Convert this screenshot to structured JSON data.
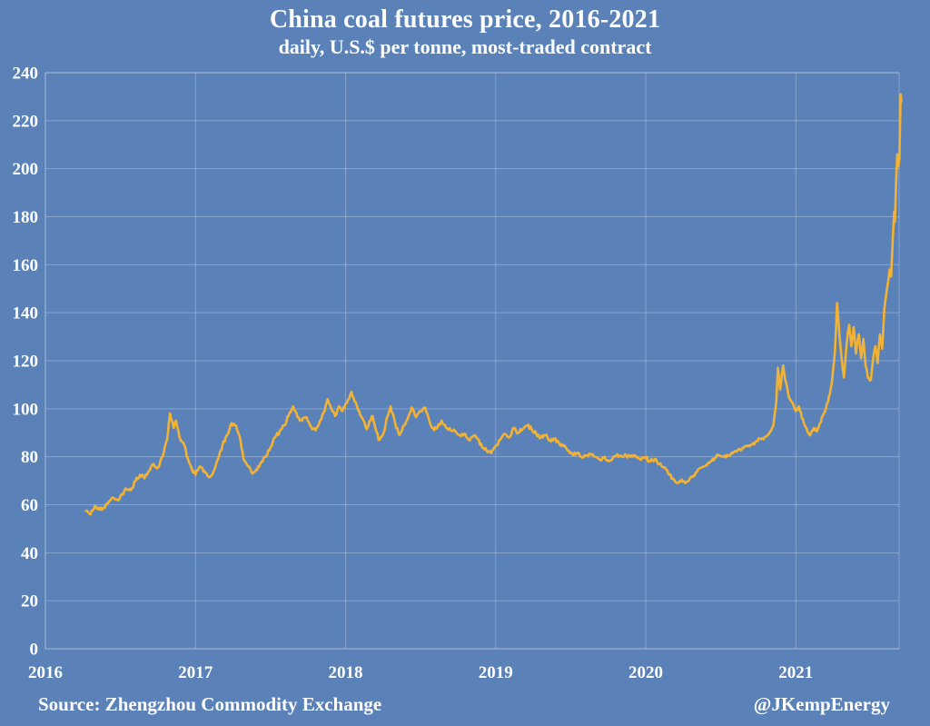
{
  "title": "China coal futures price, 2016-2021",
  "subtitle": "daily, U.S.$ per tonne, most-traded contract",
  "footer": {
    "source": "Source: Zhengzhou Commodity Exchange",
    "credit": "@JKempEnergy"
  },
  "colors": {
    "background": "#5a81b8",
    "line": "#f2b234",
    "grid": "rgba(255,255,255,0.28)",
    "text": "#ffffff"
  },
  "chart_data": {
    "type": "line",
    "title": "China coal futures price, 2016-2021",
    "subtitle": "daily, U.S.$ per tonne, most-traded contract",
    "xlabel": "",
    "ylabel": "U.S.$ per tonne",
    "xlim": [
      2016.0,
      2021.688
    ],
    "ylim": [
      0,
      240
    ],
    "x_ticks": [
      2016,
      2017,
      2018,
      2019,
      2020,
      2021
    ],
    "x_tick_labels": [
      "2016",
      "2017",
      "2018",
      "2019",
      "2020",
      "2021"
    ],
    "y_ticks": [
      0,
      20,
      40,
      60,
      80,
      100,
      120,
      140,
      160,
      180,
      200,
      220,
      240
    ],
    "grid": true,
    "legend": "none",
    "sampling": "anchor points read from daily line",
    "series": [
      {
        "name": "Most-traded contract price (U.S.$/tonne)",
        "points": [
          [
            2016.27,
            57.5
          ],
          [
            2016.3,
            56
          ],
          [
            2016.33,
            59.5
          ],
          [
            2016.36,
            58
          ],
          [
            2016.39,
            58.5
          ],
          [
            2016.42,
            61
          ],
          [
            2016.45,
            63
          ],
          [
            2016.48,
            62
          ],
          [
            2016.51,
            64.5
          ],
          [
            2016.54,
            66.5
          ],
          [
            2016.57,
            66
          ],
          [
            2016.6,
            70
          ],
          [
            2016.63,
            72.5
          ],
          [
            2016.66,
            71
          ],
          [
            2016.69,
            74
          ],
          [
            2016.72,
            77
          ],
          [
            2016.75,
            75.5
          ],
          [
            2016.78,
            80
          ],
          [
            2016.81,
            87
          ],
          [
            2016.83,
            98
          ],
          [
            2016.855,
            92
          ],
          [
            2016.87,
            95
          ],
          [
            2016.9,
            87
          ],
          [
            2016.925,
            85
          ],
          [
            2016.95,
            79
          ],
          [
            2016.975,
            75
          ],
          [
            2017.0,
            72.5
          ],
          [
            2017.03,
            76
          ],
          [
            2017.06,
            74
          ],
          [
            2017.09,
            71.5
          ],
          [
            2017.12,
            74
          ],
          [
            2017.15,
            79
          ],
          [
            2017.18,
            85
          ],
          [
            2017.21,
            89
          ],
          [
            2017.24,
            94
          ],
          [
            2017.27,
            93
          ],
          [
            2017.3,
            87
          ],
          [
            2017.32,
            79
          ],
          [
            2017.35,
            76
          ],
          [
            2017.38,
            73
          ],
          [
            2017.41,
            74.5
          ],
          [
            2017.44,
            78
          ],
          [
            2017.47,
            80
          ],
          [
            2017.5,
            84
          ],
          [
            2017.53,
            88
          ],
          [
            2017.56,
            90.5
          ],
          [
            2017.59,
            93
          ],
          [
            2017.62,
            97
          ],
          [
            2017.65,
            101
          ],
          [
            2017.68,
            96.5
          ],
          [
            2017.71,
            95
          ],
          [
            2017.74,
            96.5
          ],
          [
            2017.77,
            92.5
          ],
          [
            2017.8,
            91
          ],
          [
            2017.83,
            95
          ],
          [
            2017.86,
            99
          ],
          [
            2017.88,
            104
          ],
          [
            2017.905,
            100
          ],
          [
            2017.93,
            97
          ],
          [
            2017.955,
            101
          ],
          [
            2017.98,
            99
          ],
          [
            2018.0,
            102
          ],
          [
            2018.04,
            107
          ],
          [
            2018.06,
            103
          ],
          [
            2018.09,
            99
          ],
          [
            2018.12,
            95
          ],
          [
            2018.14,
            91.5
          ],
          [
            2018.16,
            95
          ],
          [
            2018.18,
            97
          ],
          [
            2018.22,
            87
          ],
          [
            2018.25,
            89.5
          ],
          [
            2018.28,
            97
          ],
          [
            2018.3,
            101
          ],
          [
            2018.33,
            94
          ],
          [
            2018.36,
            89
          ],
          [
            2018.39,
            93
          ],
          [
            2018.42,
            97
          ],
          [
            2018.44,
            100.5
          ],
          [
            2018.47,
            96.5
          ],
          [
            2018.5,
            99
          ],
          [
            2018.53,
            100.5
          ],
          [
            2018.56,
            94.5
          ],
          [
            2018.59,
            91
          ],
          [
            2018.62,
            93.5
          ],
          [
            2018.64,
            95
          ],
          [
            2018.67,
            92
          ],
          [
            2018.7,
            91
          ],
          [
            2018.73,
            90.5
          ],
          [
            2018.76,
            89
          ],
          [
            2018.79,
            89.5
          ],
          [
            2018.82,
            87
          ],
          [
            2018.85,
            88.5
          ],
          [
            2018.88,
            87.5
          ],
          [
            2018.91,
            84
          ],
          [
            2018.94,
            82.5
          ],
          [
            2018.97,
            81.5
          ],
          [
            2019.0,
            84.5
          ],
          [
            2019.03,
            87
          ],
          [
            2019.06,
            89.5
          ],
          [
            2019.09,
            88
          ],
          [
            2019.12,
            92
          ],
          [
            2019.15,
            90
          ],
          [
            2019.18,
            91.5
          ],
          [
            2019.21,
            93
          ],
          [
            2019.24,
            91.5
          ],
          [
            2019.27,
            89.5
          ],
          [
            2019.3,
            88
          ],
          [
            2019.33,
            89
          ],
          [
            2019.36,
            87
          ],
          [
            2019.39,
            87.5
          ],
          [
            2019.42,
            86
          ],
          [
            2019.45,
            84.5
          ],
          [
            2019.48,
            82.5
          ],
          [
            2019.51,
            81
          ],
          [
            2019.54,
            81.5
          ],
          [
            2019.57,
            80
          ],
          [
            2019.6,
            80.5
          ],
          [
            2019.63,
            81
          ],
          [
            2019.66,
            80
          ],
          [
            2019.69,
            79
          ],
          [
            2019.72,
            79.5
          ],
          [
            2019.75,
            78.5
          ],
          [
            2019.78,
            79.5
          ],
          [
            2019.81,
            81
          ],
          [
            2019.84,
            80
          ],
          [
            2019.87,
            80.5
          ],
          [
            2019.9,
            80
          ],
          [
            2019.93,
            80.5
          ],
          [
            2019.96,
            79
          ],
          [
            2020.0,
            79.5
          ],
          [
            2020.03,
            78
          ],
          [
            2020.06,
            79
          ],
          [
            2020.09,
            77
          ],
          [
            2020.12,
            75.5
          ],
          [
            2020.15,
            73
          ],
          [
            2020.18,
            71
          ],
          [
            2020.21,
            69
          ],
          [
            2020.24,
            70.5
          ],
          [
            2020.27,
            69.5
          ],
          [
            2020.31,
            71.5
          ],
          [
            2020.34,
            73.5
          ],
          [
            2020.37,
            75.5
          ],
          [
            2020.4,
            76.5
          ],
          [
            2020.43,
            78
          ],
          [
            2020.46,
            79.5
          ],
          [
            2020.49,
            80.5
          ],
          [
            2020.52,
            80
          ],
          [
            2020.55,
            80.5
          ],
          [
            2020.58,
            81.5
          ],
          [
            2020.61,
            82.5
          ],
          [
            2020.64,
            83
          ],
          [
            2020.67,
            84.5
          ],
          [
            2020.7,
            85
          ],
          [
            2020.73,
            86
          ],
          [
            2020.76,
            87.5
          ],
          [
            2020.79,
            88
          ],
          [
            2020.82,
            89.5
          ],
          [
            2020.85,
            93
          ],
          [
            2020.87,
            103
          ],
          [
            2020.88,
            117
          ],
          [
            2020.895,
            108
          ],
          [
            2020.915,
            118
          ],
          [
            2020.93,
            112
          ],
          [
            2020.95,
            106
          ],
          [
            2020.97,
            103
          ],
          [
            2021.0,
            99
          ],
          [
            2021.02,
            101
          ],
          [
            2021.04,
            96
          ],
          [
            2021.06,
            93
          ],
          [
            2021.08,
            90
          ],
          [
            2021.1,
            89.5
          ],
          [
            2021.12,
            92
          ],
          [
            2021.14,
            90.5
          ],
          [
            2021.16,
            94
          ],
          [
            2021.18,
            97
          ],
          [
            2021.2,
            100
          ],
          [
            2021.22,
            105
          ],
          [
            2021.24,
            111
          ],
          [
            2021.26,
            124
          ],
          [
            2021.275,
            144
          ],
          [
            2021.29,
            131
          ],
          [
            2021.305,
            121
          ],
          [
            2021.32,
            113
          ],
          [
            2021.34,
            128
          ],
          [
            2021.355,
            135
          ],
          [
            2021.37,
            126
          ],
          [
            2021.385,
            134
          ],
          [
            2021.4,
            123
          ],
          [
            2021.42,
            131
          ],
          [
            2021.435,
            121
          ],
          [
            2021.45,
            129
          ],
          [
            2021.465,
            118
          ],
          [
            2021.48,
            113
          ],
          [
            2021.5,
            112
          ],
          [
            2021.515,
            121
          ],
          [
            2021.53,
            126
          ],
          [
            2021.545,
            119
          ],
          [
            2021.56,
            131
          ],
          [
            2021.575,
            125
          ],
          [
            2021.59,
            142
          ],
          [
            2021.605,
            149
          ],
          [
            2021.615,
            153
          ],
          [
            2021.625,
            158
          ],
          [
            2021.635,
            155
          ],
          [
            2021.645,
            170
          ],
          [
            2021.655,
            182
          ],
          [
            2021.66,
            178
          ],
          [
            2021.668,
            195
          ],
          [
            2021.676,
            206
          ],
          [
            2021.683,
            201
          ],
          [
            2021.69,
            204
          ],
          [
            2021.698,
            231
          ],
          [
            2021.703,
            228
          ]
        ]
      }
    ]
  }
}
